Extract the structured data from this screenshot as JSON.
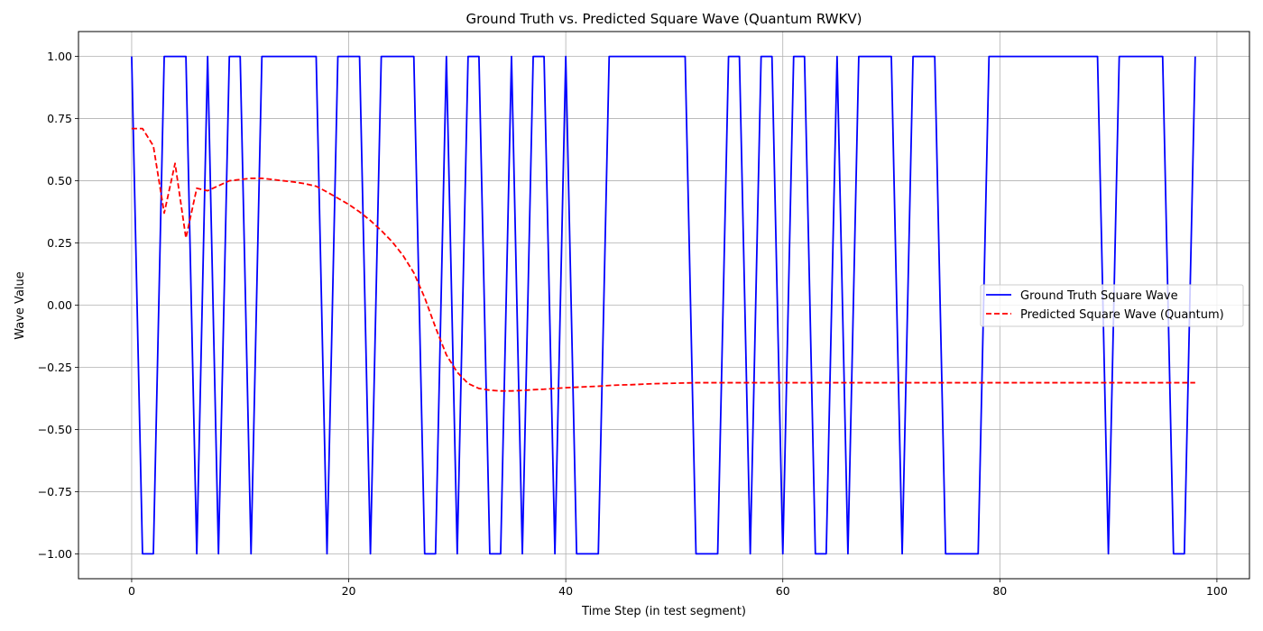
{
  "chart_data": {
    "type": "line",
    "title": "Ground Truth vs. Predicted Square Wave (Quantum RWKV)",
    "xlabel": "Time Step (in test segment)",
    "ylabel": "Wave Value",
    "xlim": [
      -4.9,
      103.0
    ],
    "ylim": [
      -1.1,
      1.1
    ],
    "xticks": [
      0,
      20,
      40,
      60,
      80,
      100
    ],
    "xtick_labels": [
      "0",
      "20",
      "40",
      "60",
      "80",
      "100"
    ],
    "yticks": [
      1.0,
      0.75,
      0.5,
      0.25,
      0.0,
      -0.25,
      -0.5,
      -0.75,
      -1.0
    ],
    "ytick_labels": [
      "1.00",
      "0.75",
      "0.50",
      "0.25",
      "0.00",
      "−0.25",
      "−0.50",
      "−0.75",
      "−1.00"
    ],
    "grid": true,
    "legend_position": "center-right",
    "series": [
      {
        "name": "Ground Truth Square Wave",
        "color": "#0000ff",
        "style": "solid",
        "x": [
          0,
          1,
          2,
          3,
          4,
          5,
          6,
          7,
          8,
          9,
          10,
          11,
          12,
          13,
          14,
          15,
          16,
          17,
          18,
          19,
          20,
          21,
          22,
          23,
          24,
          25,
          26,
          27,
          28,
          29,
          30,
          31,
          32,
          33,
          34,
          35,
          36,
          37,
          38,
          39,
          40,
          41,
          42,
          43,
          44,
          45,
          46,
          47,
          48,
          49,
          50,
          51,
          52,
          53,
          54,
          55,
          56,
          57,
          58,
          59,
          60,
          61,
          62,
          63,
          64,
          65,
          66,
          67,
          68,
          69,
          70,
          71,
          72,
          73,
          74,
          75,
          76,
          77,
          78,
          79,
          80,
          81,
          82,
          83,
          84,
          85,
          86,
          87,
          88,
          89,
          90,
          91,
          92,
          93,
          94,
          95,
          96,
          97,
          98
        ],
        "y": [
          1,
          -1,
          -1,
          1,
          1,
          1,
          -1,
          1,
          -1,
          1,
          1,
          -1,
          1,
          1,
          1,
          1,
          1,
          1,
          -1,
          1,
          1,
          1,
          -1,
          1,
          1,
          1,
          1,
          -1,
          -1,
          1,
          -1,
          1,
          1,
          -1,
          -1,
          1,
          -1,
          1,
          1,
          -1,
          1,
          -1,
          -1,
          -1,
          1,
          1,
          1,
          1,
          1,
          1,
          1,
          1,
          -1,
          -1,
          -1,
          1,
          1,
          -1,
          1,
          1,
          -1,
          1,
          1,
          -1,
          -1,
          1,
          -1,
          1,
          1,
          1,
          1,
          -1,
          1,
          1,
          1,
          -1,
          -1,
          -1,
          -1,
          1,
          1,
          1,
          1,
          1,
          1,
          1,
          1,
          1,
          1,
          1,
          -1,
          1,
          1,
          1,
          1,
          1,
          -1,
          -1,
          1
        ]
      },
      {
        "name": "Predicted Square Wave (Quantum)",
        "color": "#ff0000",
        "style": "dashed",
        "x": [
          0,
          1,
          2,
          3,
          4,
          5,
          6,
          7,
          8,
          9,
          10,
          11,
          12,
          13,
          14,
          15,
          16,
          17,
          18,
          19,
          20,
          21,
          22,
          23,
          24,
          25,
          26,
          27,
          28,
          29,
          30,
          31,
          32,
          33,
          34,
          35,
          36,
          37,
          38,
          39,
          40,
          41,
          42,
          43,
          44,
          45,
          46,
          47,
          48,
          49,
          50,
          51,
          52,
          53,
          54,
          55,
          56,
          57,
          58,
          59,
          60,
          61,
          62,
          63,
          64,
          65,
          66,
          67,
          68,
          69,
          70,
          71,
          72,
          73,
          74,
          75,
          76,
          77,
          78,
          79,
          80,
          81,
          82,
          83,
          84,
          85,
          86,
          87,
          88,
          89,
          90,
          91,
          92,
          93,
          94,
          95,
          96,
          97,
          98
        ],
        "y": [
          0.71,
          0.71,
          0.64,
          0.37,
          0.57,
          0.27,
          0.47,
          0.46,
          0.48,
          0.5,
          0.505,
          0.51,
          0.51,
          0.505,
          0.5,
          0.495,
          0.488,
          0.478,
          0.455,
          0.43,
          0.405,
          0.375,
          0.34,
          0.3,
          0.255,
          0.2,
          0.13,
          0.03,
          -0.09,
          -0.2,
          -0.27,
          -0.315,
          -0.335,
          -0.342,
          -0.345,
          -0.345,
          -0.343,
          -0.34,
          -0.338,
          -0.335,
          -0.332,
          -0.33,
          -0.328,
          -0.326,
          -0.323,
          -0.321,
          -0.32,
          -0.318,
          -0.316,
          -0.315,
          -0.314,
          -0.313,
          -0.312,
          -0.312,
          -0.312,
          -0.312,
          -0.312,
          -0.312,
          -0.312,
          -0.312,
          -0.312,
          -0.312,
          -0.312,
          -0.312,
          -0.312,
          -0.312,
          -0.312,
          -0.312,
          -0.312,
          -0.312,
          -0.312,
          -0.312,
          -0.312,
          -0.312,
          -0.312,
          -0.312,
          -0.312,
          -0.312,
          -0.312,
          -0.312,
          -0.312,
          -0.312,
          -0.312,
          -0.312,
          -0.312,
          -0.312,
          -0.312,
          -0.312,
          -0.312,
          -0.312,
          -0.312,
          -0.312,
          -0.312,
          -0.312,
          -0.312,
          -0.312,
          -0.312,
          -0.312,
          -0.312
        ]
      }
    ]
  }
}
